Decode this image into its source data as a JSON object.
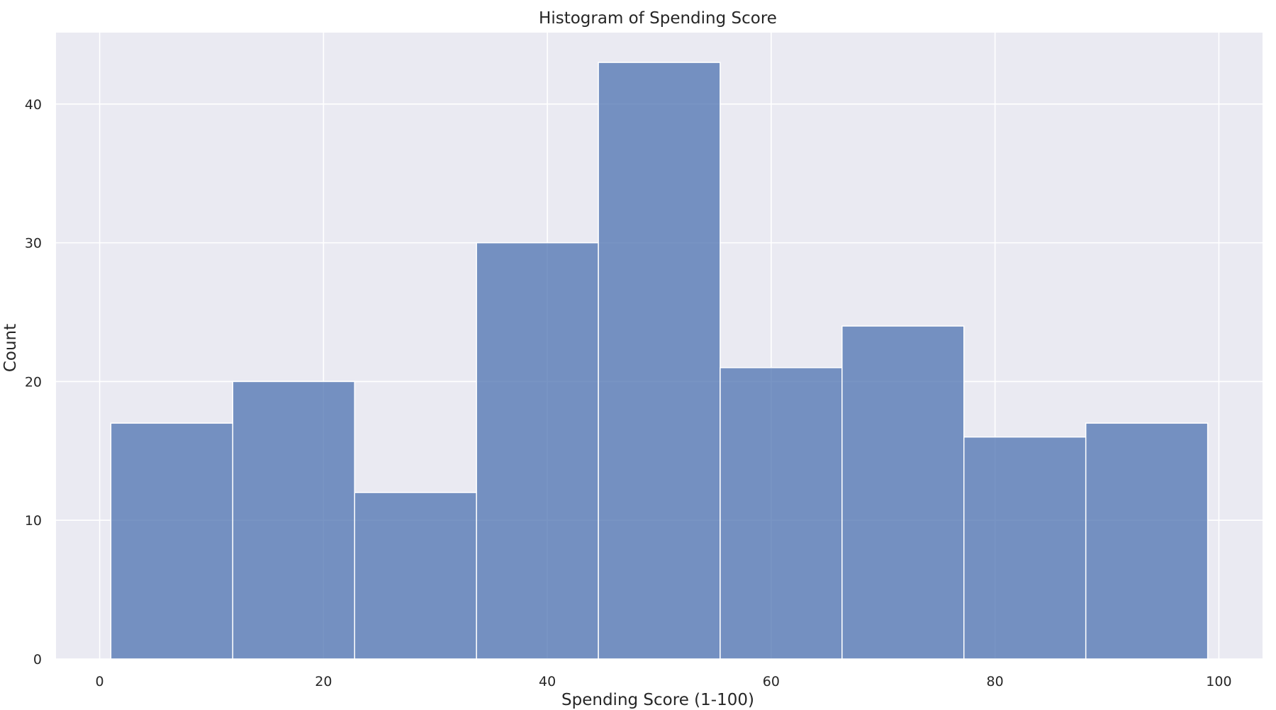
{
  "chart_data": {
    "type": "bar",
    "title": "Histogram of Spending Score",
    "xlabel": "Spending Score (1-100)",
    "ylabel": "Count",
    "xlim": [
      -3.9,
      103.9
    ],
    "ylim": [
      0,
      45.15
    ],
    "x_ticks": [
      0,
      20,
      40,
      60,
      80,
      100
    ],
    "y_ticks": [
      0,
      10,
      20,
      30,
      40
    ],
    "bin_edges": [
      1.0,
      11.89,
      22.78,
      33.67,
      44.56,
      55.44,
      66.33,
      77.22,
      88.11,
      99.0
    ],
    "values": [
      17,
      20,
      12,
      30,
      43,
      21,
      24,
      16,
      17
    ],
    "grid": true,
    "colors": {
      "bar_fill": "#4c72b0",
      "bar_edge": "#ffffff",
      "plot_background": "#eaeaf2",
      "grid": "#ffffff"
    }
  }
}
